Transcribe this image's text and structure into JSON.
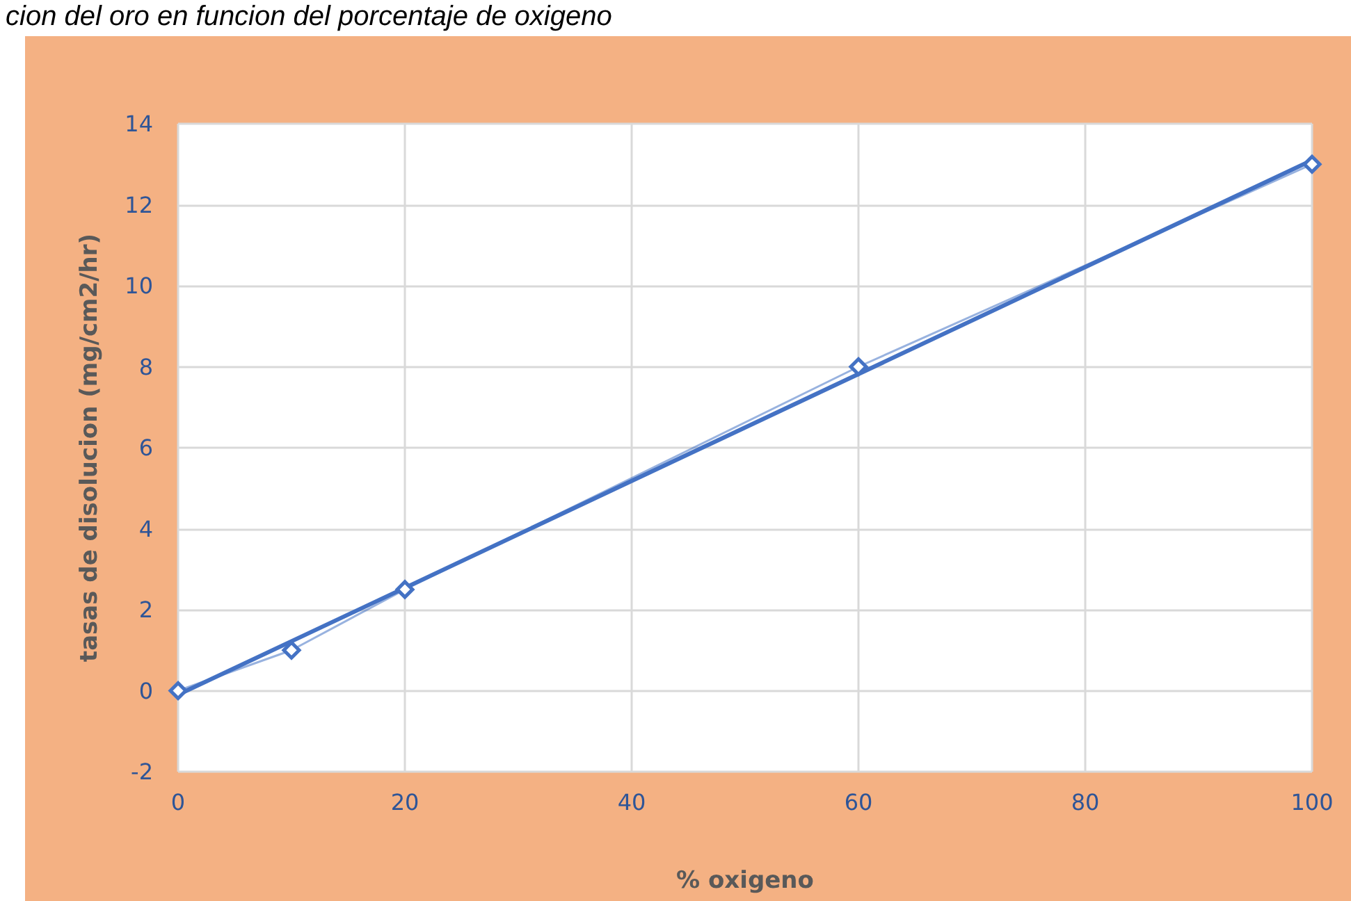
{
  "chart_data": {
    "type": "line",
    "title": "cion del oro en funcion del porcentaje de oxigeno",
    "xlabel": "% oxigeno",
    "ylabel": "tasas de disolucion (mg/cm2/hr)",
    "x": [
      0,
      10,
      20,
      60,
      100
    ],
    "series": [
      {
        "color": "#4472c4",
        "values": [
          0,
          1,
          2.5,
          8,
          13
        ],
        "marker": "diamond"
      },
      {
        "type": "line",
        "color": "#4472c4",
        "x": [
          0,
          100
        ],
        "values": [
          -0.1,
          13.1
        ],
        "marker": "none"
      }
    ],
    "xlim": [
      0,
      100
    ],
    "xticks": [
      0,
      20,
      40,
      60,
      80,
      100
    ],
    "ylim": [
      -2,
      14
    ],
    "yticks": [
      -2,
      0,
      2,
      4,
      6,
      8,
      10,
      12,
      14
    ],
    "grid": true
  }
}
